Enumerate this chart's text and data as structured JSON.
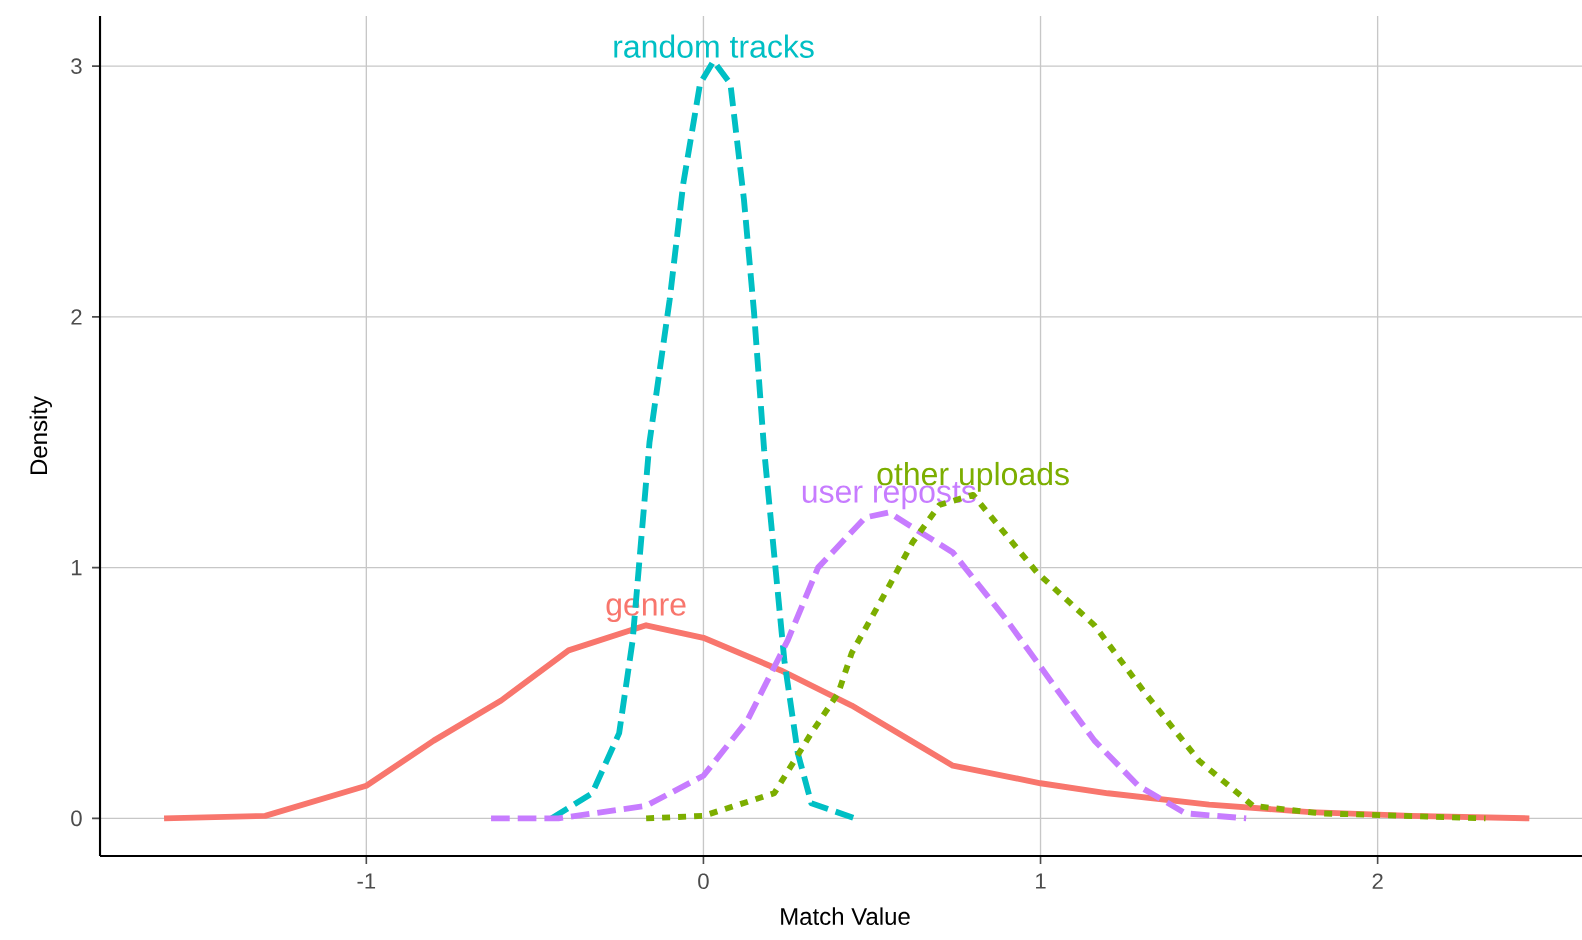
{
  "chart_data": {
    "type": "line",
    "xlabel": "Match Value",
    "ylabel": "Density",
    "xlim": [
      -1.79,
      2.63
    ],
    "ylim": [
      -0.15,
      3.2
    ],
    "xticks": [
      -1,
      0,
      1,
      2
    ],
    "yticks": [
      0,
      1,
      2,
      3
    ],
    "grid": true,
    "series": [
      {
        "name": "genre",
        "color": "#f8766d",
        "line_style": "solid",
        "x": [
          -1.6,
          -1.3,
          -1.0,
          -0.8,
          -0.6,
          -0.4,
          -0.17,
          0.0,
          0.23,
          0.44,
          0.64,
          0.74,
          1.0,
          1.2,
          1.5,
          1.8,
          2.1,
          2.45
        ],
        "values": [
          0.0,
          0.01,
          0.13,
          0.31,
          0.47,
          0.67,
          0.77,
          0.72,
          0.59,
          0.45,
          0.29,
          0.21,
          0.14,
          0.1,
          0.055,
          0.025,
          0.01,
          0.0
        ]
      },
      {
        "name": "random tracks",
        "color": "#00bfc4",
        "line_style": "dashed",
        "x": [
          -0.45,
          -0.33,
          -0.25,
          -0.21,
          -0.16,
          -0.1,
          -0.06,
          -0.01,
          0.03,
          0.08,
          0.12,
          0.15,
          0.18,
          0.24,
          0.28,
          0.32,
          0.45
        ],
        "values": [
          0.0,
          0.1,
          0.34,
          0.71,
          1.5,
          2.07,
          2.53,
          2.93,
          3.02,
          2.93,
          2.47,
          2.02,
          1.47,
          0.63,
          0.26,
          0.06,
          0.0
        ]
      },
      {
        "name": "user reposts",
        "color": "#c77cff",
        "line_style": "dashed",
        "x": [
          -0.63,
          -0.43,
          -0.17,
          0.0,
          0.13,
          0.25,
          0.34,
          0.48,
          0.55,
          0.74,
          0.9,
          1.04,
          1.16,
          1.29,
          1.43,
          1.61
        ],
        "values": [
          0.0,
          0.0,
          0.05,
          0.17,
          0.39,
          0.71,
          1.0,
          1.2,
          1.22,
          1.06,
          0.79,
          0.53,
          0.31,
          0.13,
          0.02,
          0.0
        ]
      },
      {
        "name": "other uploads",
        "color": "#7cae00",
        "line_style": "dotted",
        "x": [
          -0.17,
          0.0,
          0.21,
          0.32,
          0.4,
          0.44,
          0.54,
          0.62,
          0.7,
          0.8,
          0.99,
          1.16,
          1.31,
          1.47,
          1.63,
          1.83,
          2.32
        ],
        "values": [
          0.0,
          0.01,
          0.1,
          0.34,
          0.5,
          0.66,
          0.9,
          1.1,
          1.25,
          1.29,
          0.98,
          0.77,
          0.5,
          0.23,
          0.05,
          0.02,
          0.0
        ]
      }
    ]
  }
}
